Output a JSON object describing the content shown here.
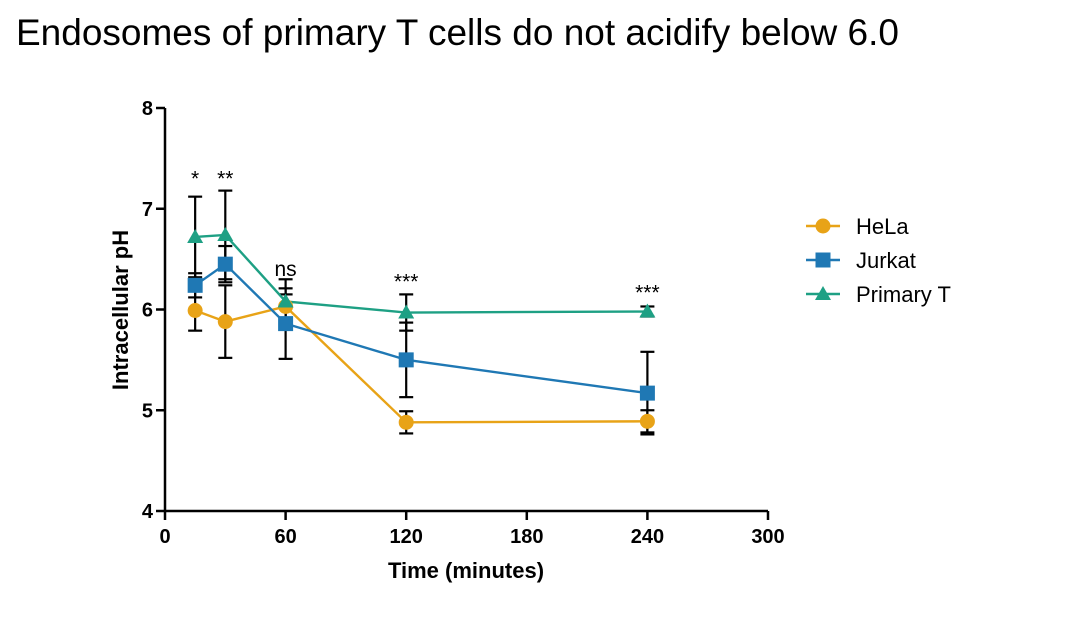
{
  "title": "Endosomes of primary T cells do not acidify below 6.0",
  "chart_data": {
    "type": "line",
    "xlabel": "Time (minutes)",
    "ylabel": "Intracellular pH",
    "xlim": [
      0,
      300
    ],
    "ylim": [
      4,
      8
    ],
    "x_ticks": [
      "0",
      "60",
      "120",
      "180",
      "240",
      "300"
    ],
    "y_ticks": [
      "4",
      "5",
      "6",
      "7",
      "8"
    ],
    "x": [
      15,
      30,
      60,
      120,
      240
    ],
    "series": [
      {
        "name": "HeLa",
        "color": "#E8A317",
        "marker": "circle",
        "values": [
          5.99,
          5.88,
          6.03,
          4.88,
          4.89
        ],
        "err": [
          0.2,
          0.36,
          0.12,
          0.11,
          0.11
        ]
      },
      {
        "name": "Jurkat",
        "color": "#1F78B4",
        "marker": "square",
        "values": [
          6.24,
          6.45,
          5.86,
          5.5,
          5.17
        ],
        "err": [
          0.12,
          0.18,
          0.35,
          0.37,
          0.41
        ]
      },
      {
        "name": "Primary T",
        "color": "#1EA084",
        "marker": "triangle",
        "values": [
          6.72,
          6.74,
          6.08,
          5.97,
          5.98
        ],
        "err": [
          0.4,
          0.44,
          0.22,
          0.18,
          0.05
        ]
      }
    ],
    "annotations": [
      {
        "x": 15,
        "y": 7.35,
        "text": "*"
      },
      {
        "x": 30,
        "y": 7.35,
        "text": "**"
      },
      {
        "x": 60,
        "y": 6.45,
        "text": "ns"
      },
      {
        "x": 120,
        "y": 6.33,
        "text": "***"
      },
      {
        "x": 240,
        "y": 6.22,
        "text": "***"
      }
    ],
    "legend_position": "right",
    "grid": false
  }
}
